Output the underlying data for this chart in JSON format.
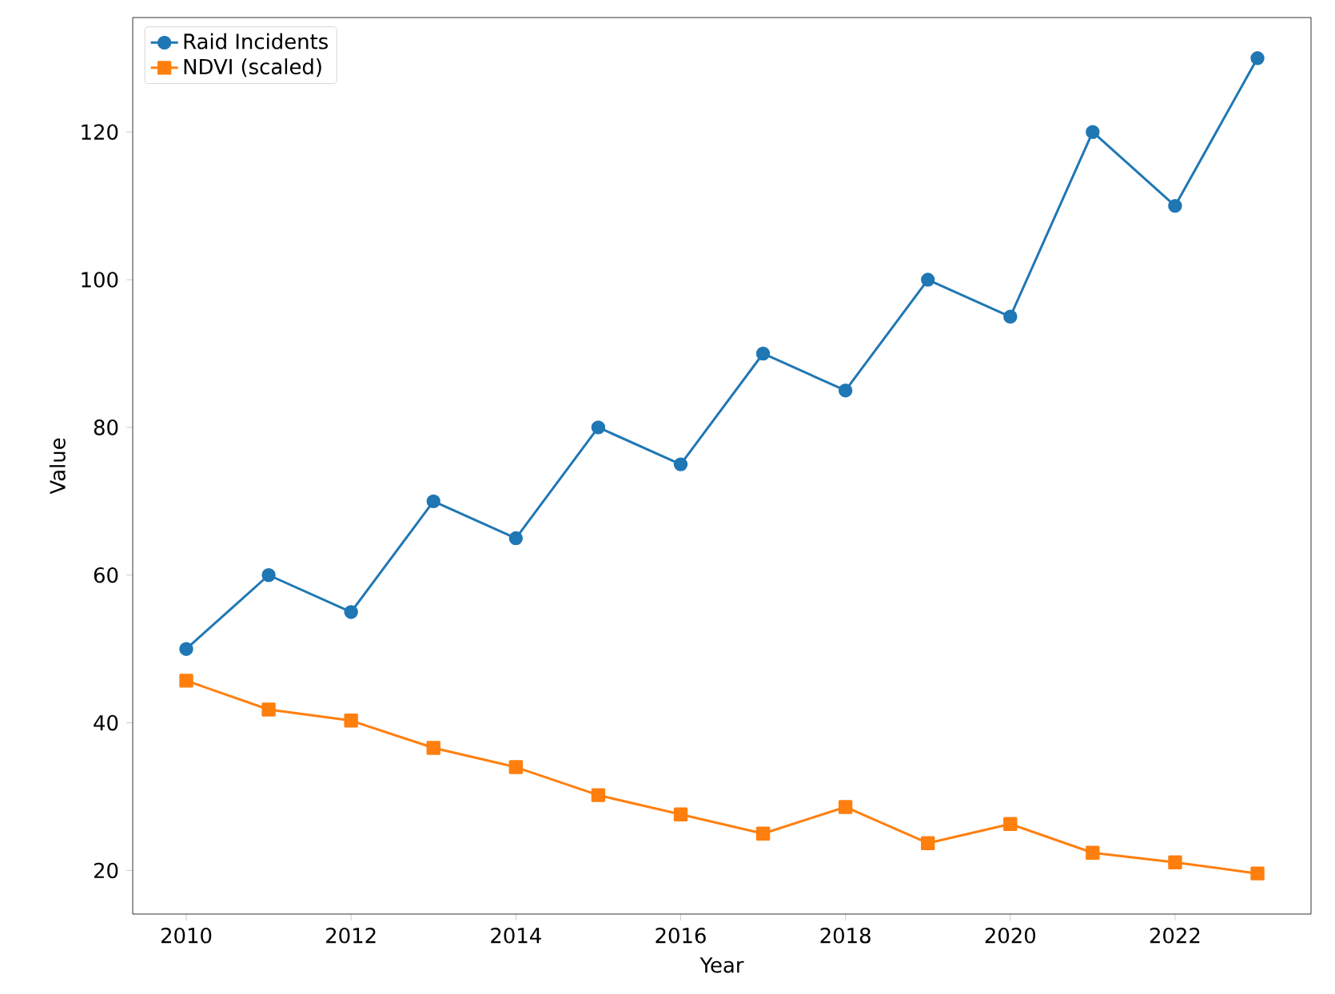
{
  "chart_data": {
    "type": "line",
    "xlabel": "Year",
    "ylabel": "Value",
    "x": [
      2010,
      2011,
      2012,
      2013,
      2014,
      2015,
      2016,
      2017,
      2018,
      2019,
      2020,
      2021,
      2022,
      2023
    ],
    "series": [
      {
        "name": "Raid Incidents",
        "color": "#1f77b4",
        "marker": "circle",
        "values": [
          50,
          60,
          55,
          70,
          65,
          80,
          75,
          90,
          85,
          100,
          95,
          120,
          110,
          130
        ]
      },
      {
        "name": "NDVI (scaled)",
        "color": "#ff7f0e",
        "marker": "square",
        "values": [
          45.7,
          41.8,
          40.3,
          36.6,
          34.0,
          30.2,
          27.6,
          25.0,
          28.6,
          23.7,
          26.3,
          22.4,
          21.1,
          19.6
        ]
      }
    ],
    "xlim": [
      2009.35,
      2023.65
    ],
    "ylim": [
      14.1,
      135.5
    ],
    "xticks": [
      2010,
      2012,
      2014,
      2016,
      2018,
      2020,
      2022
    ],
    "yticks": [
      20,
      40,
      60,
      80,
      100,
      120
    ],
    "grid": false,
    "legend": "top left",
    "line_style": "solid"
  }
}
